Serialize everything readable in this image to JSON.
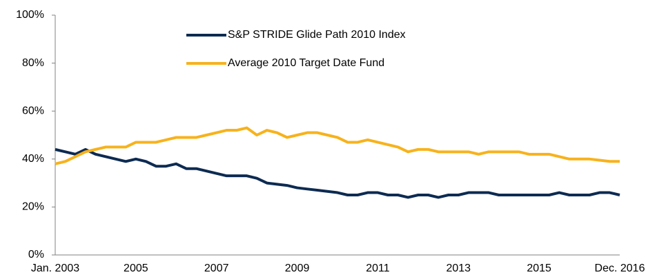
{
  "chart_data": {
    "type": "line",
    "categories": [
      "Jan. 2003",
      null,
      null,
      null,
      null,
      null,
      null,
      null,
      "2005",
      null,
      null,
      null,
      null,
      null,
      null,
      null,
      "2007",
      null,
      null,
      null,
      null,
      null,
      null,
      null,
      "2009",
      null,
      null,
      null,
      null,
      null,
      null,
      null,
      "2011",
      null,
      null,
      null,
      null,
      null,
      null,
      null,
      "2013",
      null,
      null,
      null,
      null,
      null,
      null,
      null,
      "2015",
      null,
      null,
      null,
      null,
      null,
      null,
      null,
      "Dec. 2016"
    ],
    "series": [
      {
        "name": "S&P STRIDE Glide Path 2010 Index",
        "color": "#0d2b52",
        "values": [
          44,
          43,
          42,
          44,
          42,
          41,
          40,
          39,
          40,
          39,
          37,
          37,
          38,
          36,
          36,
          35,
          34,
          33,
          33,
          33,
          32,
          30,
          29.5,
          29,
          28,
          27.5,
          27,
          26.5,
          26,
          25,
          25,
          26,
          26,
          25,
          25,
          24,
          25,
          25,
          24,
          25,
          25,
          26,
          26,
          26,
          25,
          25,
          25,
          25,
          25,
          25,
          26,
          25,
          25,
          25,
          26,
          26,
          25
        ]
      },
      {
        "name": "Average 2010 Target Date Fund",
        "color": "#f7b21b",
        "values": [
          38,
          39,
          41,
          43,
          44,
          45,
          45,
          45,
          47,
          47,
          47,
          48,
          49,
          49,
          49,
          50,
          51,
          52,
          52,
          53,
          50,
          52,
          51,
          49,
          50,
          51,
          51,
          50,
          49,
          47,
          47,
          48,
          47,
          46,
          45,
          43,
          44,
          44,
          43,
          43,
          43,
          43,
          42,
          43,
          43,
          43,
          43,
          42,
          42,
          42,
          41,
          40,
          40,
          40,
          39.5,
          39,
          39
        ]
      }
    ],
    "ylim": [
      0,
      100
    ],
    "yticks": [
      {
        "value": 0,
        "label": "0%"
      },
      {
        "value": 20,
        "label": "20%"
      },
      {
        "value": 40,
        "label": "40%"
      },
      {
        "value": 60,
        "label": "60%"
      },
      {
        "value": 80,
        "label": "80%"
      },
      {
        "value": 100,
        "label": "100%"
      }
    ]
  }
}
